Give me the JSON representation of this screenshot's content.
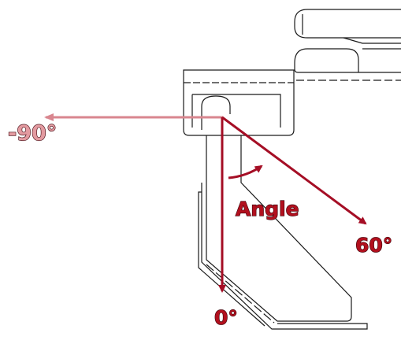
{
  "labels": {
    "minus90": "-90°",
    "zero": "0°",
    "sixty": "60°",
    "angle": "Angle"
  },
  "colors": {
    "arrow_main": "#a50e25",
    "arrow_faded": "#d9868f",
    "label_main": "#b2101e",
    "label_faded": "#e39aa0",
    "outline": "#1a1a1a"
  }
}
